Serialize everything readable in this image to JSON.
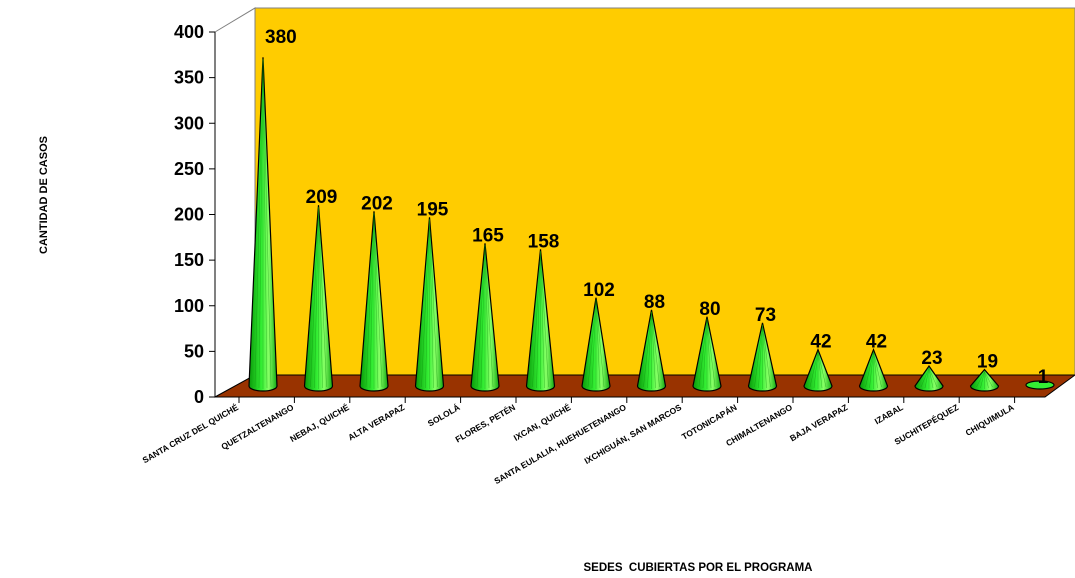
{
  "chart_data": {
    "type": "bar",
    "categories": [
      "SANTA CRUZ DEL QUICHÉ",
      "QUETZALTENANGO",
      "NEBAJ, QUICHÉ",
      "ALTA VERAPAZ",
      "SOLOLÁ",
      "FLORES, PETÉN",
      "IXCAN, QUICHÉ",
      "SANTA EULALIA, HUEHUETENANGO",
      "IXCHIGUÁN, SAN MARCOS",
      "TOTONICAPÁN",
      "CHIMALTENANGO",
      "BAJA VERAPAZ",
      "IZABAL",
      "SUCHITEPÉQUEZ",
      "CHIQUIMULA"
    ],
    "values": [
      380,
      209,
      202,
      195,
      165,
      158,
      102,
      88,
      80,
      73,
      42,
      42,
      23,
      19,
      1
    ],
    "data_labels": [
      "380",
      "209",
      "202",
      "195",
      "165",
      "158",
      "102",
      "88",
      "80",
      "73",
      "42",
      "42",
      "23",
      "19",
      "1"
    ],
    "xlabel": "SEDES  CUBIERTAS POR EL PROGRAMA",
    "ylabel": "CANTIDAD DE CASOS",
    "ylim": [
      0,
      400
    ],
    "yticks": [
      0,
      50,
      100,
      150,
      200,
      250,
      300,
      350,
      400
    ],
    "ytick_labels": [
      "0",
      "50",
      "100",
      "150",
      "200",
      "250",
      "300",
      "350",
      "400"
    ],
    "mark_shape": "cone",
    "grid": false,
    "colors": {
      "back_wall": "#FFCC00",
      "floor": "#993300",
      "cone_fill": "#22DD22",
      "cone_highlight": "#88FF66",
      "outline": "#000000"
    }
  }
}
